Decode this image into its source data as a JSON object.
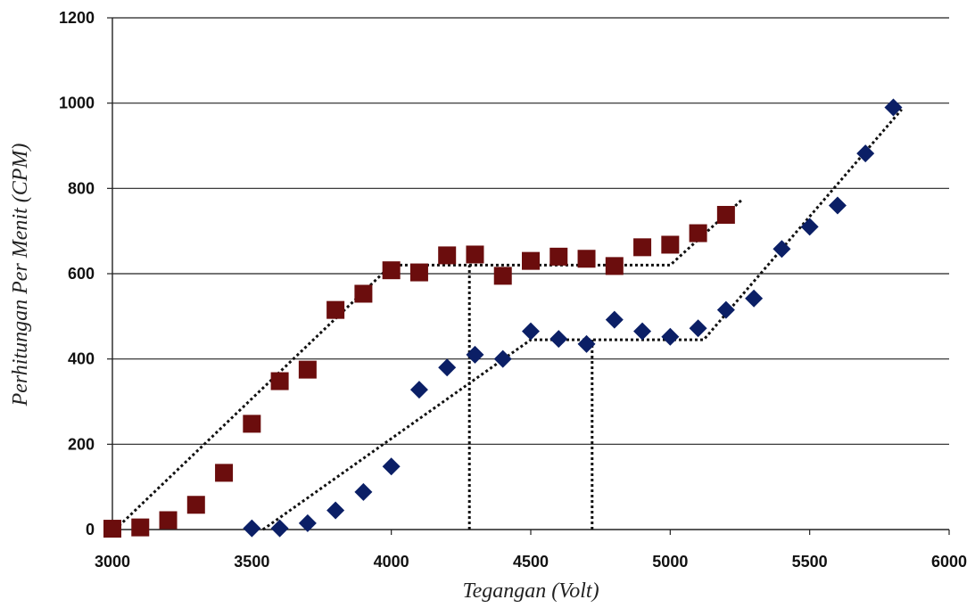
{
  "chart_data": {
    "type": "scatter",
    "xlabel": "Tegangan (Volt)",
    "ylabel": "Perhitungan Per Menit (CPM)",
    "xlim": [
      3000,
      6000
    ],
    "ylim": [
      0,
      1200
    ],
    "xticks": [
      3000,
      3500,
      4000,
      4500,
      5000,
      5500,
      6000
    ],
    "yticks": [
      0,
      200,
      400,
      600,
      800,
      1000,
      1200
    ],
    "grid": "horizontal",
    "series": [
      {
        "marker": "square",
        "color": "#6b0d0d",
        "x": [
          3000,
          3100,
          3200,
          3300,
          3400,
          3500,
          3600,
          3700,
          3800,
          3900,
          4000,
          4100,
          4200,
          4300,
          4400,
          4500,
          4600,
          4700,
          4800,
          4900,
          5000,
          5100,
          5200
        ],
        "y": [
          2,
          5,
          22,
          58,
          133,
          248,
          348,
          375,
          515,
          553,
          608,
          603,
          643,
          645,
          595,
          630,
          640,
          635,
          618,
          662,
          668,
          695,
          738
        ]
      },
      {
        "marker": "diamond",
        "color": "#0b1f66",
        "x": [
          3500,
          3600,
          3700,
          3800,
          3900,
          4000,
          4100,
          4200,
          4300,
          4400,
          4500,
          4600,
          4700,
          4800,
          4900,
          5000,
          5100,
          5200,
          5300,
          5400,
          5500,
          5600,
          5700,
          5800
        ],
        "y": [
          3,
          3,
          15,
          45,
          88,
          148,
          328,
          380,
          410,
          400,
          465,
          447,
          435,
          492,
          465,
          452,
          472,
          515,
          542,
          658,
          710,
          760,
          882,
          990
        ]
      }
    ],
    "trendlines": [
      {
        "points": [
          [
            3010,
            0
          ],
          [
            4000,
            620
          ],
          [
            5000,
            620
          ],
          [
            5260,
            775
          ]
        ]
      },
      {
        "points": [
          [
            3540,
            0
          ],
          [
            4500,
            445
          ],
          [
            5120,
            445
          ],
          [
            5830,
            985
          ]
        ]
      }
    ],
    "reference_lines": [
      {
        "x": 4280,
        "y_from": 0,
        "y_to": 620
      },
      {
        "x": 4720,
        "y_from": 0,
        "y_to": 445
      }
    ]
  }
}
